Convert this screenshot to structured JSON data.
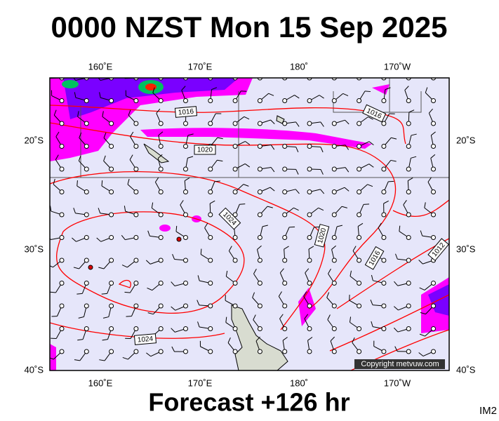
{
  "header": {
    "title": "0000 NZST Mon 15 Sep 2025"
  },
  "map": {
    "top_labels": [
      "160˚E",
      "170˚E",
      "180˚",
      "170˚W"
    ],
    "bottom_labels": [
      "160˚E",
      "170˚E",
      "180˚",
      "170˚W"
    ],
    "left_labels": [
      "20˚S",
      "30˚S",
      "40˚S"
    ],
    "right_labels": [
      "20˚S",
      "30˚S",
      "40˚S"
    ],
    "isobar_labels": [
      "1016",
      "1016",
      "1020",
      "1024",
      "1020",
      "1016",
      "1012",
      "1024"
    ],
    "copyright": "Copyright metvuw.com"
  },
  "footer": {
    "forecast": "Forecast +126 hr",
    "code": "IM2"
  }
}
